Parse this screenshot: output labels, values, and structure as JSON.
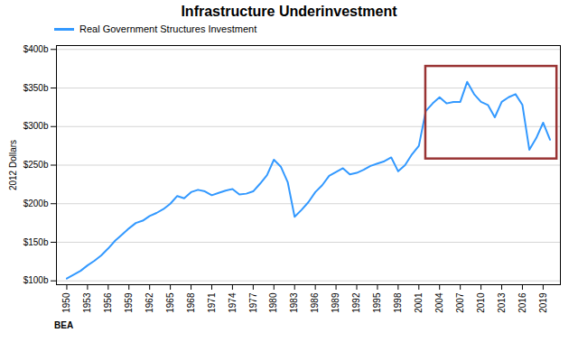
{
  "chart_data": {
    "type": "line",
    "title": "Infrastructure Underinvestment",
    "ylabel": "2012 Dollars",
    "annotations": [
      "BEA"
    ],
    "x": [
      1950,
      1951,
      1952,
      1953,
      1954,
      1955,
      1956,
      1957,
      1958,
      1959,
      1960,
      1961,
      1962,
      1963,
      1964,
      1965,
      1966,
      1967,
      1968,
      1969,
      1970,
      1971,
      1972,
      1973,
      1974,
      1975,
      1976,
      1977,
      1978,
      1979,
      1980,
      1981,
      1982,
      1983,
      1984,
      1985,
      1986,
      1987,
      1988,
      1989,
      1990,
      1991,
      1992,
      1993,
      1994,
      1995,
      1996,
      1997,
      1998,
      1999,
      2000,
      2001,
      2002,
      2003,
      2004,
      2005,
      2006,
      2007,
      2008,
      2009,
      2010,
      2011,
      2012,
      2013,
      2014,
      2015,
      2016,
      2017,
      2018,
      2019,
      2020
    ],
    "series": [
      {
        "name": "Real Government Structures Investment",
        "color": "#3399FF",
        "values": [
          103,
          108,
          113,
          120,
          126,
          133,
          142,
          152,
          160,
          168,
          175,
          178,
          184,
          188,
          193,
          200,
          210,
          207,
          215,
          218,
          216,
          211,
          214,
          217,
          219,
          212,
          213,
          216,
          226,
          237,
          257,
          248,
          228,
          183,
          192,
          202,
          215,
          224,
          236,
          241,
          246,
          238,
          240,
          244,
          249,
          252,
          255,
          260,
          242,
          250,
          264,
          275,
          320,
          330,
          338,
          330,
          332,
          332,
          358,
          342,
          332,
          328,
          312,
          332,
          338,
          342,
          328,
          270,
          285,
          305,
          283
        ]
      }
    ],
    "highlight": {
      "x": [
        2002,
        2021
      ],
      "y": [
        258,
        378
      ],
      "color": "#993333"
    },
    "xlim": [
      1948.5,
      2021.5
    ],
    "xticks": [
      1950,
      1953,
      1956,
      1959,
      1962,
      1965,
      1968,
      1971,
      1974,
      1977,
      1980,
      1983,
      1986,
      1989,
      1992,
      1995,
      1998,
      2001,
      2004,
      2007,
      2010,
      2013,
      2016,
      2019
    ],
    "ylim": [
      95,
      405
    ],
    "yticks": [
      {
        "value": 100,
        "label": "$100b"
      },
      {
        "value": 150,
        "label": "$150b"
      },
      {
        "value": 200,
        "label": "$200b"
      },
      {
        "value": 250,
        "label": "$250b"
      },
      {
        "value": 300,
        "label": "$300b"
      },
      {
        "value": 350,
        "label": "$350b"
      },
      {
        "value": 400,
        "label": "$400b"
      }
    ],
    "grid": true,
    "legend": "upper left"
  }
}
